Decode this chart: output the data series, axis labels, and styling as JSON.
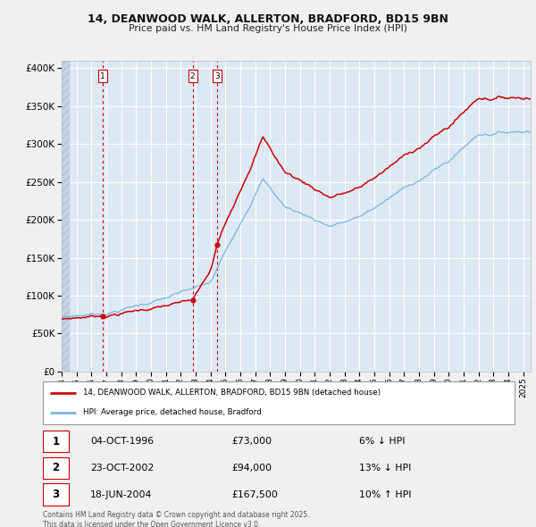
{
  "title1": "14, DEANWOOD WALK, ALLERTON, BRADFORD, BD15 9BN",
  "title2": "Price paid vs. HM Land Registry's House Price Index (HPI)",
  "transactions": [
    {
      "num": 1,
      "date": "04-OCT-1996",
      "price": 73000,
      "pct": "6%",
      "dir": "↓",
      "year_x": 1996.75
    },
    {
      "num": 2,
      "date": "23-OCT-2002",
      "price": 94000,
      "pct": "13%",
      "dir": "↓",
      "year_x": 2002.8
    },
    {
      "num": 3,
      "date": "18-JUN-2004",
      "price": 167500,
      "pct": "10%",
      "dir": "↑",
      "year_x": 2004.46
    }
  ],
  "legend_label1": "14, DEANWOOD WALK, ALLERTON, BRADFORD, BD15 9BN (detached house)",
  "legend_label2": "HPI: Average price, detached house, Bradford",
  "footer": "Contains HM Land Registry data © Crown copyright and database right 2025.\nThis data is licensed under the Open Government Licence v3.0.",
  "hpi_color": "#7ab4d8",
  "price_color": "#cc0000",
  "vline_color": "#cc0000",
  "bg_color": "#dde8f5",
  "grid_color": "#ffffff",
  "ylim": [
    0,
    410000
  ],
  "yticks": [
    0,
    50000,
    100000,
    150000,
    200000,
    250000,
    300000,
    350000,
    400000
  ],
  "xmin": 1994.0,
  "xmax": 2025.5
}
